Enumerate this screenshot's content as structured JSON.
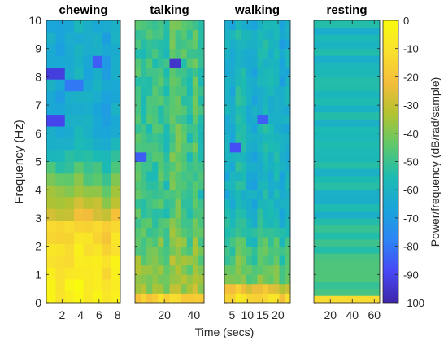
{
  "chart_data": {
    "type": "heatmap",
    "ylabel": "Frequency  (Hz)",
    "xlabel": "Time (secs)",
    "y_ticks": [
      "0",
      "1",
      "2",
      "3",
      "4",
      "5",
      "6",
      "7",
      "8",
      "9",
      "10"
    ],
    "ylim": [
      0,
      10
    ],
    "colorbar": {
      "label": "Power/frequency (dB/rad/sample)",
      "range": [
        -100,
        0
      ],
      "ticks": [
        "0",
        "-10",
        "-20",
        "-30",
        "-40",
        "-50",
        "-60",
        "-70",
        "-80",
        "-90",
        "-100"
      ],
      "colormap": "parula",
      "colors": [
        "#3e26a8",
        "#4748f5",
        "#2c85f5",
        "#1aa5da",
        "#1cbbb2",
        "#5cc86b",
        "#b1c332",
        "#f4bd3a",
        "#f9e02e",
        "#f9fb0e"
      ]
    },
    "panels": [
      {
        "title": "chewing",
        "x_ticks": [
          "2",
          "4",
          "6",
          "8"
        ],
        "x_tick_values": [
          2,
          4,
          6,
          8
        ],
        "xlim": [
          0.3,
          8.3
        ],
        "columns": 8,
        "rows": 24,
        "profile": {
          "low_value": -5,
          "mid_value": -22,
          "transition_hz": 2.8,
          "high_value": -65,
          "variation": 8,
          "notable_low_spots": [
            [
              1.2,
              8.1,
              -92
            ],
            [
              1.2,
              6.4,
              -90
            ],
            [
              5.8,
              8.4,
              -85
            ],
            [
              3.4,
              7.8,
              -80
            ]
          ]
        }
      },
      {
        "title": "talking",
        "x_ticks": [
          "20",
          "40"
        ],
        "x_tick_values": [
          20,
          40
        ],
        "xlim": [
          0,
          47
        ],
        "columns": 12,
        "rows": 30,
        "profile": {
          "low_value": -10,
          "mid_value": -35,
          "transition_hz": 0.4,
          "high_value": -50,
          "variation": 12,
          "notable_low_spots": [
            [
              27,
              8.6,
              -95
            ],
            [
              3,
              5.2,
              -85
            ]
          ]
        }
      },
      {
        "title": "walking",
        "x_ticks": [
          "5",
          "10",
          "15",
          "20"
        ],
        "x_tick_values": [
          5,
          10,
          15,
          20
        ],
        "xlim": [
          2.5,
          24
        ],
        "columns": 12,
        "rows": 30,
        "profile": {
          "low_value": -8,
          "mid_value": -40,
          "transition_hz": 0.6,
          "high_value": -60,
          "variation": 10,
          "notable_low_spots": [
            [
              5.5,
              5.6,
              -88
            ],
            [
              15,
              6.5,
              -85
            ]
          ]
        }
      },
      {
        "title": "resting",
        "x_ticks": [
          "20",
          "40",
          "60"
        ],
        "x_tick_values": [
          20,
          40,
          60
        ],
        "xlim": [
          5,
          65
        ],
        "columns": 1,
        "rows": 40,
        "profile": {
          "low_value": -3,
          "mid_value": -45,
          "transition_hz": 0.35,
          "high_value": -58,
          "variation": 6,
          "notable_low_spots": []
        }
      }
    ]
  }
}
